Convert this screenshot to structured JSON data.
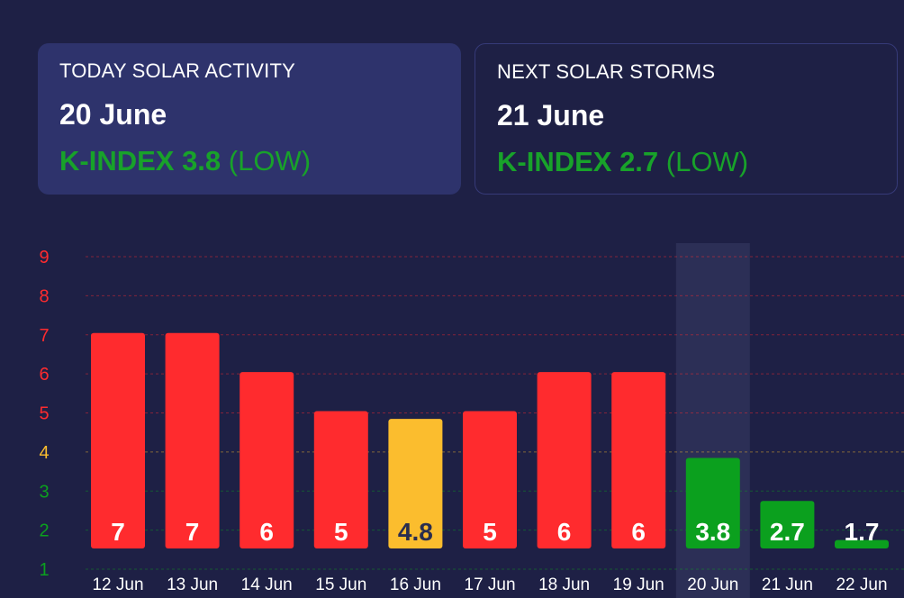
{
  "cards": {
    "today": {
      "label": "TODAY SOLAR ACTIVITY",
      "date": "20 June",
      "k_value": "K-INDEX 3.8",
      "level": "(LOW)"
    },
    "next": {
      "label": "NEXT SOLAR STORMS",
      "date": "21 June",
      "k_value": "K-INDEX 2.7",
      "level": "(LOW)"
    }
  },
  "colors": {
    "storm": "#ff2b2e",
    "moderate": "#fbbd2e",
    "low": "#0ba01e",
    "highlight": "#2c2f56"
  },
  "chart_data": {
    "type": "bar",
    "categories": [
      "12 Jun",
      "13 Jun",
      "14 Jun",
      "15 Jun",
      "16 Jun",
      "17 Jun",
      "18 Jun",
      "19 Jun",
      "20 Jun",
      "21 Jun",
      "22 Jun"
    ],
    "values": [
      7,
      7,
      6,
      5,
      4.8,
      5,
      6,
      6,
      3.8,
      2.7,
      1.7
    ],
    "labels": [
      "7",
      "7",
      "6",
      "5",
      "4.8",
      "5",
      "6",
      "6",
      "3.8",
      "2.7",
      "1.7"
    ],
    "ylim": [
      1,
      9
    ],
    "yticks": [
      "1",
      "2",
      "3",
      "4",
      "5",
      "6",
      "7",
      "8",
      "9"
    ],
    "highlight_category": "20 Jun",
    "grid": true,
    "xlabel": "",
    "ylabel": "",
    "title": ""
  }
}
